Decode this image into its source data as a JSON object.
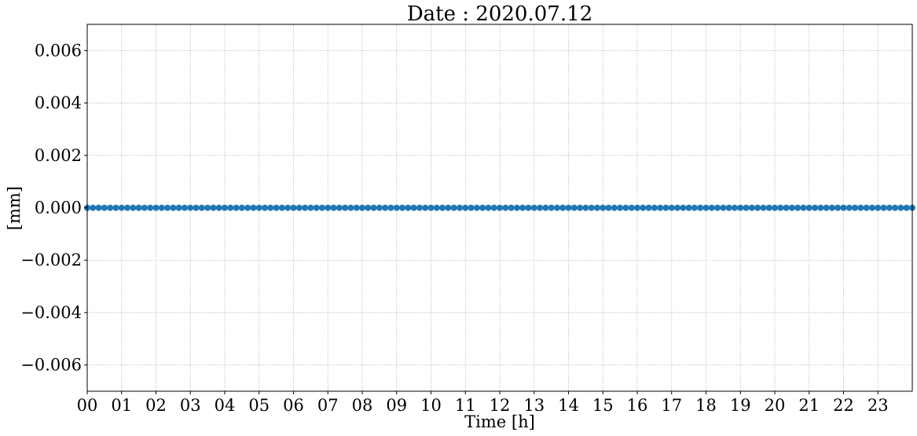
{
  "chart_data": {
    "type": "scatter",
    "title": "Date : 2020.07.12",
    "xlabel": "Time [h]",
    "ylabel": "[mm]",
    "xlim": [
      0,
      24
    ],
    "ylim": [
      -0.007,
      0.007
    ],
    "x_ticks": [
      "00",
      "01",
      "02",
      "03",
      "04",
      "05",
      "06",
      "07",
      "08",
      "09",
      "10",
      "11",
      "12",
      "13",
      "14",
      "15",
      "16",
      "17",
      "18",
      "19",
      "20",
      "21",
      "22",
      "23"
    ],
    "y_ticks": [
      "−0.006",
      "−0.004",
      "−0.002",
      "0.000",
      "0.002",
      "0.004",
      "0.006"
    ],
    "y_tick_values": [
      -0.006,
      -0.004,
      -0.002,
      0.0,
      0.002,
      0.004,
      0.006
    ],
    "grid": true,
    "series": [
      {
        "color": "#1f77b4",
        "x_step_hours": 0.1667,
        "x_start": 0,
        "x_end": 24,
        "y_constant": 0.0
      }
    ]
  }
}
